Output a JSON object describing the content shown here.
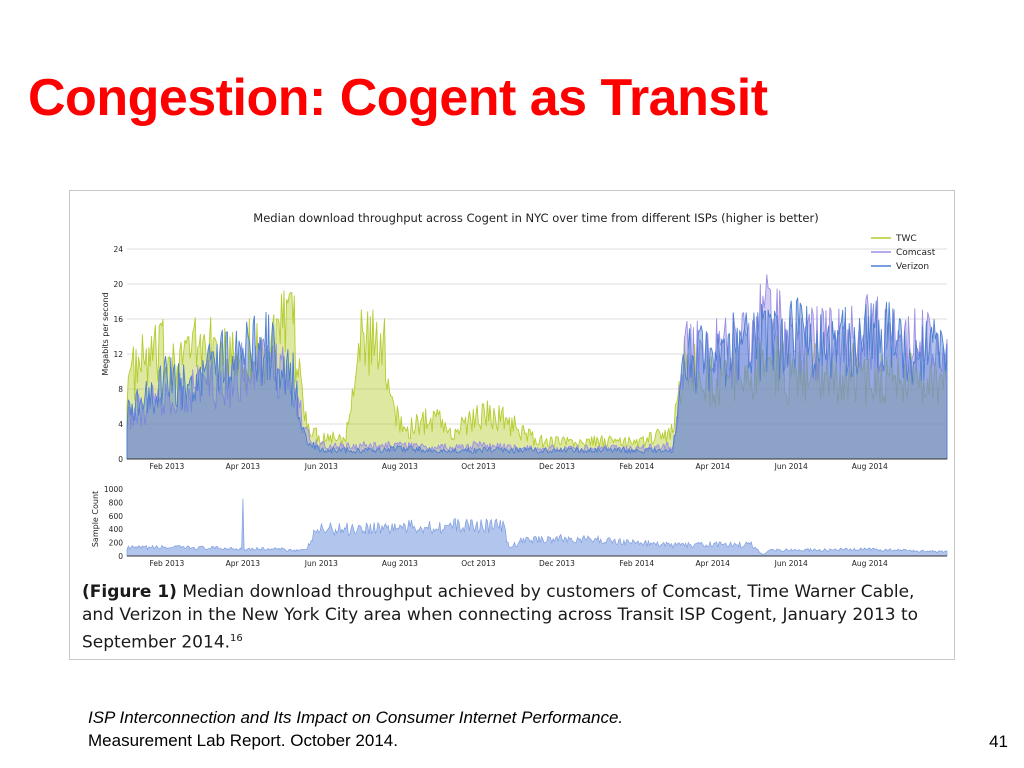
{
  "slide": {
    "title": "Congestion: Cogent as Transit",
    "page_number": "41"
  },
  "source": {
    "line1": "ISP Interconnection and Its Impact on Consumer Internet Performance.",
    "line2": "Measurement Lab Report. October 2014."
  },
  "caption": {
    "label": "(Figure 1)",
    "text": "Median download throughput achieved by customers of Comcast, Time Warner Cable, and Verizon in the New York City area when connecting across Transit ISP Cogent, January 2013 to September 2014.",
    "footnote": "16"
  },
  "colors": {
    "twc": "#b5cc2e",
    "comcast": "#9a8fe6",
    "verizon": "#4f7fd0",
    "sample": "#7f9fe0"
  },
  "chart_data": [
    {
      "type": "area",
      "title": "Median download throughput across Cogent in NYC over time from different ISPs (higher is better)",
      "xlabel": "",
      "ylabel": "Megabits per second",
      "x_range": [
        "2013-01-01",
        "2014-09-30"
      ],
      "ylim": [
        0,
        24
      ],
      "y_ticks": [
        0,
        4,
        8,
        12,
        16,
        20,
        24
      ],
      "x_ticks": [
        {
          "date": "2013-02-01",
          "label": "Feb 2013"
        },
        {
          "date": "2013-04-01",
          "label": "Apr 2013"
        },
        {
          "date": "2013-06-01",
          "label": "Jun 2013"
        },
        {
          "date": "2013-08-01",
          "label": "Aug 2013"
        },
        {
          "date": "2013-10-01",
          "label": "Oct 2013"
        },
        {
          "date": "2013-12-01",
          "label": "Dec 2013"
        },
        {
          "date": "2014-02-01",
          "label": "Feb 2014"
        },
        {
          "date": "2014-04-01",
          "label": "Apr 2014"
        },
        {
          "date": "2014-06-01",
          "label": "Jun 2014"
        },
        {
          "date": "2014-08-01",
          "label": "Aug 2014"
        }
      ],
      "grid": true,
      "legend_position": "top-right",
      "series": [
        {
          "name": "TWC",
          "points": [
            [
              "2013-01-01",
              9
            ],
            [
              "2013-01-15",
              11
            ],
            [
              "2013-02-01",
              12
            ],
            [
              "2013-02-15",
              12
            ],
            [
              "2013-03-01",
              13
            ],
            [
              "2013-03-15",
              11
            ],
            [
              "2013-04-01",
              12
            ],
            [
              "2013-04-15",
              12
            ],
            [
              "2013-05-01",
              14
            ],
            [
              "2013-05-10",
              15
            ],
            [
              "2013-05-18",
              6
            ],
            [
              "2013-05-25",
              3
            ],
            [
              "2013-06-01",
              2.5
            ],
            [
              "2013-06-10",
              2.5
            ],
            [
              "2013-06-20",
              2.5
            ],
            [
              "2013-06-28",
              13
            ],
            [
              "2013-07-10",
              13
            ],
            [
              "2013-07-20",
              12
            ],
            [
              "2013-07-28",
              6
            ],
            [
              "2013-08-05",
              3
            ],
            [
              "2013-08-15",
              4
            ],
            [
              "2013-09-01",
              5
            ],
            [
              "2013-09-10",
              2.5
            ],
            [
              "2013-09-20",
              4
            ],
            [
              "2013-10-01",
              5
            ],
            [
              "2013-10-15",
              5
            ],
            [
              "2013-11-01",
              3.5
            ],
            [
              "2013-11-15",
              2
            ],
            [
              "2013-12-01",
              2
            ],
            [
              "2013-12-20",
              1.8
            ],
            [
              "2014-01-01",
              2
            ],
            [
              "2014-01-15",
              2
            ],
            [
              "2014-02-01",
              1.8
            ],
            [
              "2014-02-15",
              2.5
            ],
            [
              "2014-03-01",
              3
            ],
            [
              "2014-03-10",
              11
            ],
            [
              "2014-03-25",
              9
            ],
            [
              "2014-04-10",
              9
            ],
            [
              "2014-05-01",
              10
            ],
            [
              "2014-05-20",
              11
            ],
            [
              "2014-06-01",
              9
            ],
            [
              "2014-06-20",
              10
            ],
            [
              "2014-07-01",
              9
            ],
            [
              "2014-07-20",
              10
            ],
            [
              "2014-08-01",
              9
            ],
            [
              "2014-08-20",
              10
            ],
            [
              "2014-09-01",
              9
            ],
            [
              "2014-09-30",
              9
            ]
          ]
        },
        {
          "name": "Comcast",
          "points": [
            [
              "2013-01-01",
              5
            ],
            [
              "2013-01-15",
              6
            ],
            [
              "2013-02-01",
              8
            ],
            [
              "2013-02-15",
              7
            ],
            [
              "2013-03-01",
              9
            ],
            [
              "2013-03-15",
              8
            ],
            [
              "2013-04-01",
              10
            ],
            [
              "2013-04-15",
              11
            ],
            [
              "2013-05-01",
              10
            ],
            [
              "2013-05-10",
              8
            ],
            [
              "2013-05-18",
              4
            ],
            [
              "2013-05-25",
              2
            ],
            [
              "2013-06-01",
              1.5
            ],
            [
              "2013-07-01",
              1.5
            ],
            [
              "2013-08-01",
              1.5
            ],
            [
              "2013-09-01",
              1.3
            ],
            [
              "2013-10-01",
              1.5
            ],
            [
              "2013-11-01",
              1.2
            ],
            [
              "2013-12-01",
              1.2
            ],
            [
              "2014-01-01",
              1.2
            ],
            [
              "2014-02-01",
              1.2
            ],
            [
              "2014-03-01",
              1.5
            ],
            [
              "2014-03-10",
              12
            ],
            [
              "2014-04-01",
              12
            ],
            [
              "2014-05-01",
              13
            ],
            [
              "2014-05-15",
              17
            ],
            [
              "2014-06-01",
              13
            ],
            [
              "2014-07-01",
              13
            ],
            [
              "2014-08-01",
              14
            ],
            [
              "2014-09-01",
              13
            ],
            [
              "2014-09-30",
              13
            ]
          ]
        },
        {
          "name": "Verizon",
          "points": [
            [
              "2013-01-01",
              5
            ],
            [
              "2013-01-15",
              7
            ],
            [
              "2013-02-01",
              9
            ],
            [
              "2013-02-15",
              8
            ],
            [
              "2013-03-01",
              10
            ],
            [
              "2013-03-15",
              11
            ],
            [
              "2013-04-01",
              12
            ],
            [
              "2013-04-15",
              13
            ],
            [
              "2013-05-01",
              11
            ],
            [
              "2013-05-10",
              9
            ],
            [
              "2013-05-18",
              3
            ],
            [
              "2013-05-25",
              1.5
            ],
            [
              "2013-06-01",
              1
            ],
            [
              "2013-07-01",
              1
            ],
            [
              "2013-08-01",
              1.2
            ],
            [
              "2013-09-01",
              1
            ],
            [
              "2013-10-01",
              1
            ],
            [
              "2013-11-01",
              1
            ],
            [
              "2013-12-01",
              1
            ],
            [
              "2014-01-01",
              1
            ],
            [
              "2014-02-01",
              1
            ],
            [
              "2014-03-01",
              1
            ],
            [
              "2014-03-10",
              11
            ],
            [
              "2014-04-01",
              12
            ],
            [
              "2014-05-01",
              13
            ],
            [
              "2014-06-01",
              14
            ],
            [
              "2014-07-01",
              13
            ],
            [
              "2014-08-01",
              14
            ],
            [
              "2014-09-01",
              13
            ],
            [
              "2014-09-30",
              12
            ]
          ]
        }
      ]
    },
    {
      "type": "area",
      "title": "",
      "xlabel": "",
      "ylabel": "Sample Count",
      "x_range": [
        "2013-01-01",
        "2014-09-30"
      ],
      "ylim": [
        0,
        1000
      ],
      "y_ticks": [
        0,
        200,
        400,
        600,
        800,
        1000
      ],
      "x_ticks": [
        {
          "date": "2013-02-01",
          "label": "Feb 2013"
        },
        {
          "date": "2013-04-01",
          "label": "Apr 2013"
        },
        {
          "date": "2013-06-01",
          "label": "Jun 2013"
        },
        {
          "date": "2013-08-01",
          "label": "Aug 2013"
        },
        {
          "date": "2013-10-01",
          "label": "Oct 2013"
        },
        {
          "date": "2013-12-01",
          "label": "Dec 2013"
        },
        {
          "date": "2014-02-01",
          "label": "Feb 2014"
        },
        {
          "date": "2014-04-01",
          "label": "Apr 2014"
        },
        {
          "date": "2014-06-01",
          "label": "Jun 2014"
        },
        {
          "date": "2014-08-01",
          "label": "Aug 2014"
        }
      ],
      "grid": false,
      "series": [
        {
          "points": [
            [
              "2013-01-01",
              120
            ],
            [
              "2013-02-01",
              130
            ],
            [
              "2013-03-01",
              120
            ],
            [
              "2013-03-31",
              110
            ],
            [
              "2013-04-01",
              1000
            ],
            [
              "2013-04-02",
              110
            ],
            [
              "2013-05-01",
              100
            ],
            [
              "2013-05-20",
              80
            ],
            [
              "2013-05-28",
              390
            ],
            [
              "2013-07-01",
              420
            ],
            [
              "2013-08-01",
              430
            ],
            [
              "2013-09-01",
              440
            ],
            [
              "2013-10-01",
              460
            ],
            [
              "2013-10-20",
              450
            ],
            [
              "2013-10-25",
              120
            ],
            [
              "2013-11-05",
              240
            ],
            [
              "2013-12-01",
              260
            ],
            [
              "2014-01-01",
              240
            ],
            [
              "2014-02-01",
              200
            ],
            [
              "2014-03-01",
              160
            ],
            [
              "2014-04-01",
              170
            ],
            [
              "2014-05-01",
              170
            ],
            [
              "2014-05-10",
              20
            ],
            [
              "2014-05-15",
              90
            ],
            [
              "2014-07-01",
              90
            ],
            [
              "2014-08-01",
              100
            ],
            [
              "2014-09-30",
              60
            ]
          ]
        }
      ]
    }
  ]
}
